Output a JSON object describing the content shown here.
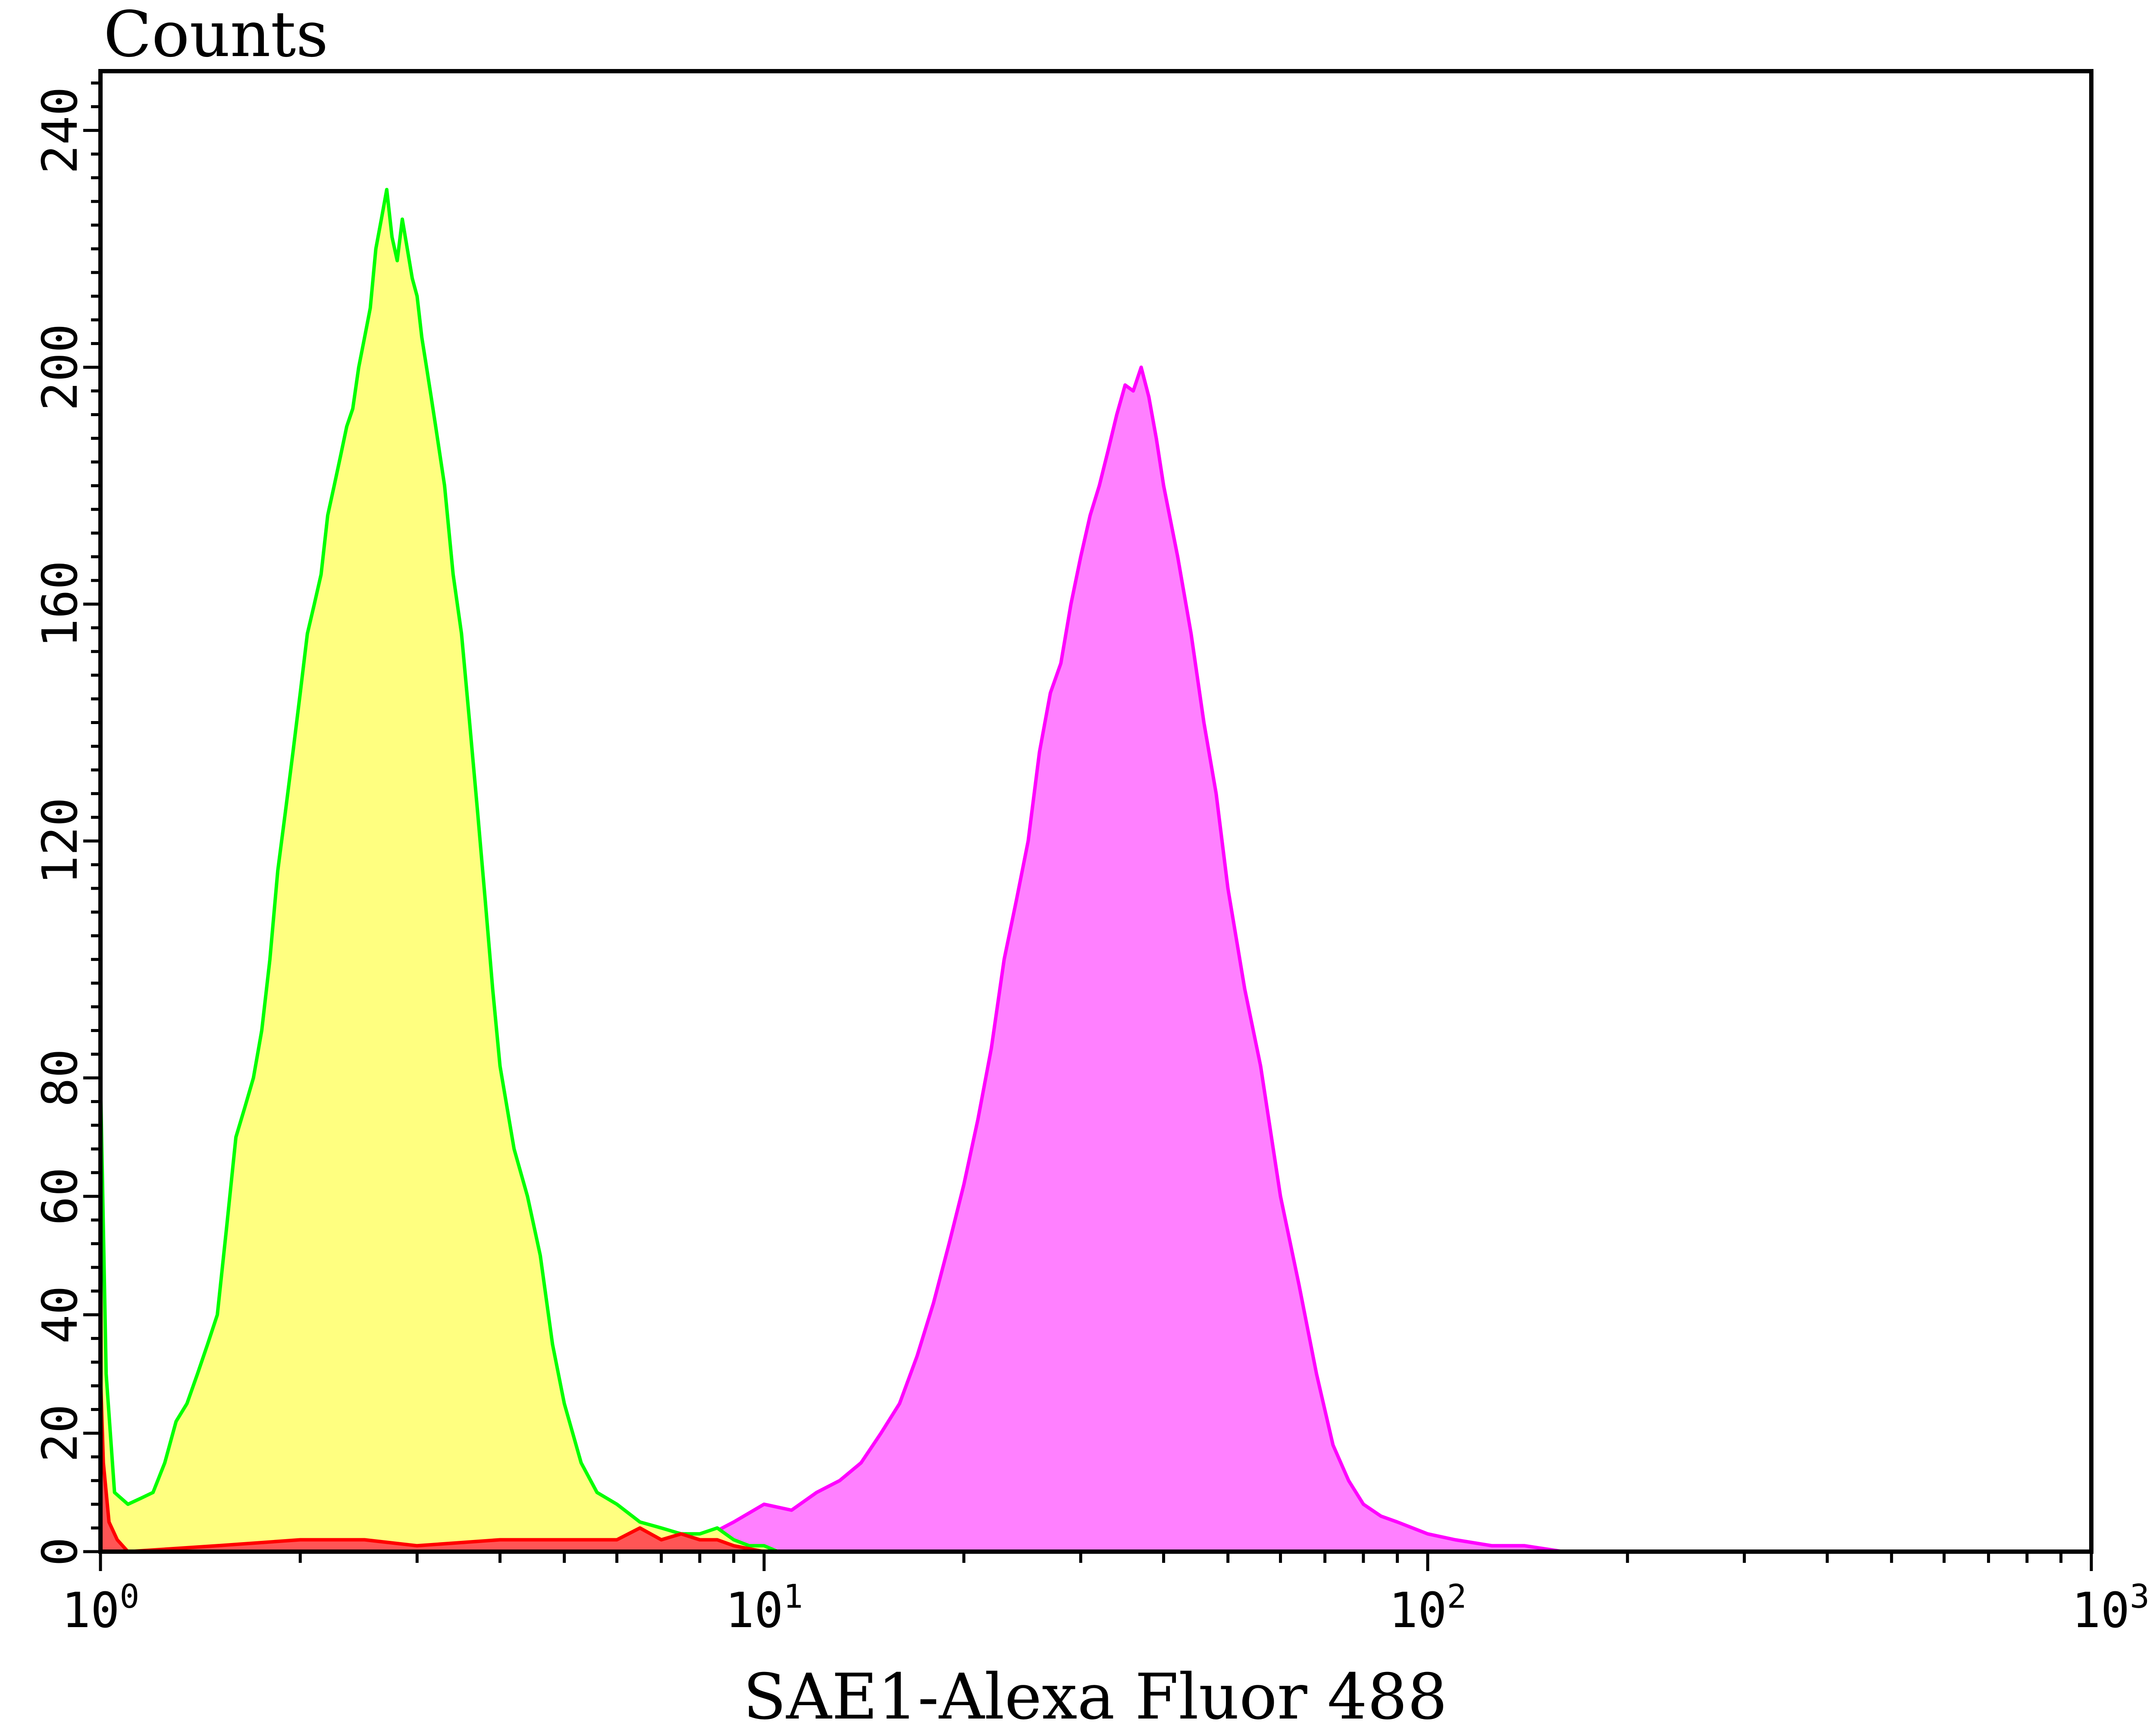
{
  "chart_data": {
    "type": "area",
    "xlabel": "SAE1-Alexa Fluor 488",
    "ylabel": "Counts",
    "x_scale": "log",
    "xlim": [
      1,
      1000
    ],
    "ylim": [
      0,
      250
    ],
    "x_ticks": [
      {
        "base": "10",
        "exp": "0",
        "value": 1
      },
      {
        "base": "10",
        "exp": "1",
        "value": 10
      },
      {
        "base": "10",
        "exp": "2",
        "value": 100
      },
      {
        "base": "10",
        "exp": "3",
        "value": 1000
      }
    ],
    "y_ticks": [
      "0",
      "20",
      "40",
      "60",
      "80",
      "120",
      "160",
      "200",
      "240"
    ],
    "y_tick_values": [
      0,
      20,
      40,
      60,
      80,
      120,
      160,
      200,
      240
    ],
    "grid": false,
    "legend": "none",
    "series": [
      {
        "color": "#ff80ff",
        "stroke": "#ff00ff",
        "x": [
          8.0,
          9.0,
          10.0,
          11.0,
          12.0,
          13.0,
          14.0,
          15.0,
          16.0,
          17.0,
          18.0,
          19.0,
          20.0,
          21.0,
          22.0,
          23.0,
          24.0,
          25.0,
          26.0,
          27.0,
          28.0,
          29.0,
          30.0,
          31.0,
          32.0,
          33.0,
          34.0,
          35.0,
          36.0,
          37.0,
          38.0,
          39.0,
          40.0,
          42.0,
          44.0,
          46.0,
          48.0,
          50.0,
          53.0,
          56.0,
          60.0,
          64.0,
          68.0,
          72.0,
          76.0,
          80.0,
          85.0,
          90.0,
          100.0,
          110.0,
          125.0,
          140.0,
          160.0,
          180.0,
          200.0
        ],
        "y": [
          2,
          5,
          8,
          7,
          10,
          12,
          15,
          20,
          25,
          33,
          42,
          52,
          62,
          73,
          85,
          100,
          110,
          120,
          135,
          145,
          150,
          160,
          168,
          175,
          180,
          186,
          192,
          197,
          196,
          200,
          195,
          188,
          180,
          168,
          155,
          140,
          128,
          112,
          95,
          82,
          60,
          45,
          30,
          18,
          12,
          8,
          6,
          5,
          3,
          2,
          1,
          1,
          0,
          0,
          0
        ]
      },
      {
        "color": "#ffff80",
        "stroke": "#00ff00",
        "x": [
          1.0,
          1.02,
          1.05,
          1.1,
          1.15,
          1.2,
          1.25,
          1.3,
          1.35,
          1.4,
          1.45,
          1.5,
          1.55,
          1.6,
          1.65,
          1.7,
          1.75,
          1.8,
          1.85,
          1.9,
          1.95,
          2.0,
          2.05,
          2.1,
          2.15,
          2.2,
          2.25,
          2.3,
          2.35,
          2.4,
          2.45,
          2.5,
          2.55,
          2.6,
          2.65,
          2.7,
          2.75,
          2.8,
          2.85,
          2.9,
          2.95,
          3.0,
          3.05,
          3.1,
          3.15,
          3.2,
          3.3,
          3.4,
          3.5,
          3.6,
          3.7,
          3.8,
          3.9,
          4.0,
          4.2,
          4.4,
          4.6,
          4.8,
          5.0,
          5.3,
          5.6,
          6.0,
          6.5,
          7.0,
          7.5,
          8.0,
          8.5,
          9.0,
          9.5,
          10.0,
          10.5,
          11.0,
          12.0
        ],
        "y": [
          80,
          30,
          10,
          8,
          9,
          10,
          15,
          22,
          25,
          30,
          35,
          40,
          55,
          70,
          75,
          80,
          88,
          100,
          115,
          125,
          135,
          145,
          155,
          160,
          165,
          175,
          180,
          185,
          190,
          193,
          200,
          205,
          210,
          220,
          225,
          230,
          222,
          218,
          225,
          220,
          215,
          212,
          205,
          200,
          195,
          190,
          180,
          165,
          155,
          140,
          125,
          110,
          95,
          82,
          68,
          60,
          50,
          35,
          25,
          15,
          10,
          8,
          5,
          4,
          3,
          3,
          4,
          2,
          1,
          1,
          0,
          0,
          0
        ]
      },
      {
        "color": "#ff5555",
        "stroke": "#ff0000",
        "x": [
          1.0,
          1.01,
          1.03,
          1.06,
          1.1,
          1.5,
          2.0,
          2.5,
          3.0,
          4.0,
          5.0,
          6.0,
          6.5,
          7.0,
          7.5,
          8.0,
          8.5,
          9.0,
          10.0,
          11.0
        ],
        "y": [
          30,
          15,
          5,
          2,
          0,
          1,
          2,
          2,
          1,
          2,
          2,
          2,
          4,
          2,
          3,
          2,
          2,
          1,
          0,
          0
        ]
      }
    ]
  }
}
